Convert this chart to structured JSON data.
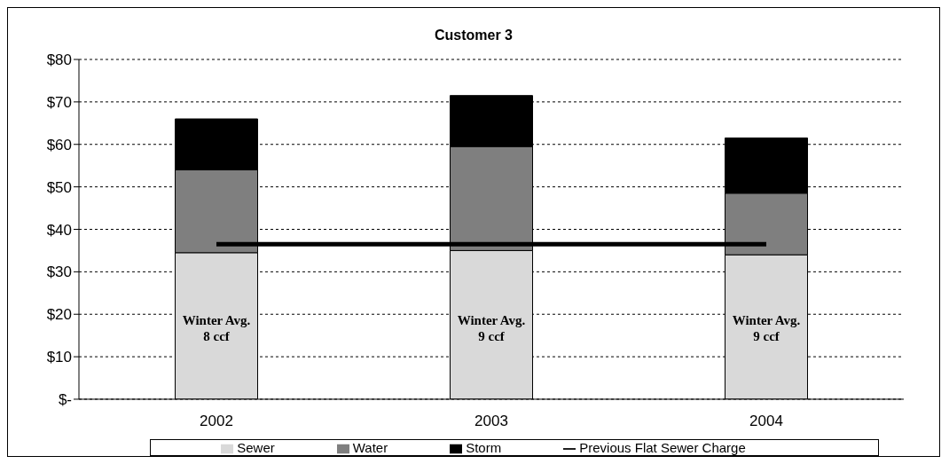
{
  "chart_data": {
    "type": "bar",
    "title": "Customer 3",
    "categories": [
      "2002",
      "2003",
      "2004"
    ],
    "stacked": true,
    "series": [
      {
        "name": "Sewer",
        "color": "#d9d9d9",
        "values": [
          34.5,
          35,
          34
        ]
      },
      {
        "name": "Water",
        "color": "#7f7f7f",
        "values": [
          19.5,
          24.5,
          14.5
        ]
      },
      {
        "name": "Storm",
        "color": "#000000",
        "values": [
          12,
          12,
          13
        ]
      },
      {
        "name": "Previous Flat Sewer Charge",
        "type": "line",
        "color": "#000000",
        "values": [
          36.5,
          36.5,
          36.5
        ]
      }
    ],
    "ylim": [
      0,
      80
    ],
    "yticks": [
      {
        "value": 0,
        "label": "$-"
      },
      {
        "value": 10,
        "label": "$10"
      },
      {
        "value": 20,
        "label": "$20"
      },
      {
        "value": 30,
        "label": "$30"
      },
      {
        "value": 40,
        "label": "$40"
      },
      {
        "value": 50,
        "label": "$50"
      },
      {
        "value": 60,
        "label": "$60"
      },
      {
        "value": 70,
        "label": "$70"
      },
      {
        "value": 80,
        "label": "$80"
      }
    ],
    "grid": "y",
    "legend": "bottom",
    "marker": "none",
    "line_style": "solid",
    "annotations": [
      "Winter Avg.\n8 ccf",
      "Winter Avg.\n9 ccf",
      "Winter Avg.\n9 ccf"
    ]
  }
}
